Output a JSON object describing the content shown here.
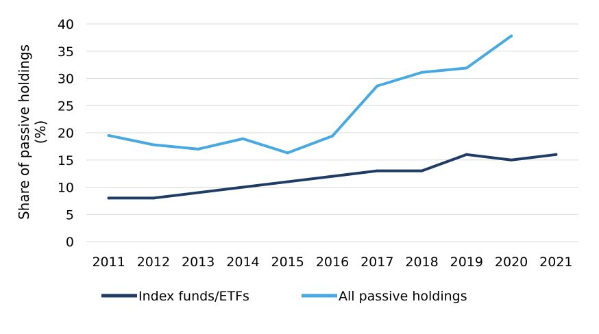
{
  "chart_data": {
    "type": "line",
    "title": "",
    "xlabel": "",
    "ylabel_lines": [
      "Share of passive holdings",
      "(%)"
    ],
    "x": [
      2011,
      2012,
      2013,
      2014,
      2015,
      2016,
      2017,
      2018,
      2019,
      2020,
      2021
    ],
    "ylim": [
      0,
      40
    ],
    "yticks": [
      0,
      5,
      10,
      15,
      20,
      25,
      30,
      35,
      40
    ],
    "grid": true,
    "legend_position": "bottom",
    "series": [
      {
        "name": "Index funds/ETFs",
        "color": "#1f3c64",
        "values": [
          8,
          8,
          9,
          10,
          11,
          12,
          13,
          13,
          16,
          15,
          16
        ]
      },
      {
        "name": "All passive holdings",
        "color": "#47a9e0",
        "values": [
          19.5,
          17.8,
          17.0,
          18.9,
          16.3,
          19.4,
          28.6,
          31.1,
          31.9,
          37.8,
          null
        ]
      }
    ]
  }
}
